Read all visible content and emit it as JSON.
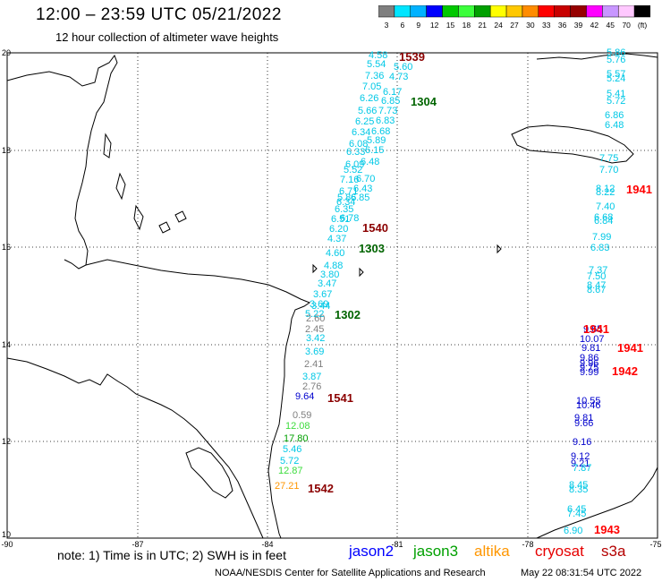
{
  "header": {
    "title": "12:00 – 23:59 UTC 05/21/2022",
    "subtitle": "12 hour collection of altimeter wave heights"
  },
  "scale": {
    "colors": [
      "#7f7f7f",
      "#00e5ff",
      "#00b2ff",
      "#0000ff",
      "#00c800",
      "#3cff3c",
      "#00a000",
      "#ffff00",
      "#ffc800",
      "#ff8c00",
      "#ff0000",
      "#c80000",
      "#960000",
      "#ff00ff",
      "#c896ff",
      "#ffc8ff",
      "#000000"
    ],
    "labels": [
      "3",
      "6",
      "9",
      "12",
      "15",
      "18",
      "21",
      "24",
      "27",
      "30",
      "33",
      "36",
      "39",
      "42",
      "45",
      "70",
      "(ft)"
    ]
  },
  "axes": {
    "x_ticks": [
      "-90",
      "-87",
      "-84",
      "-81",
      "-78",
      "-75"
    ],
    "y_ticks": [
      "20",
      "18",
      "16",
      "14",
      "12",
      "10"
    ]
  },
  "track_times": [
    {
      "text": "1539",
      "color": "#8b0000"
    },
    {
      "text": "1304",
      "color": "#006400"
    },
    {
      "text": "1540",
      "color": "#8b0000"
    },
    {
      "text": "1303",
      "color": "#006400"
    },
    {
      "text": "1302",
      "color": "#006400"
    },
    {
      "text": "1541",
      "color": "#8b0000"
    },
    {
      "text": "1542",
      "color": "#8b0000"
    },
    {
      "text": "1941",
      "color": "#ff0000"
    },
    {
      "text": "1941",
      "color": "#ff0000"
    },
    {
      "text": "1941",
      "color": "#ff0000"
    },
    {
      "text": "1942",
      "color": "#ff0000"
    },
    {
      "text": "1943",
      "color": "#ff0000"
    }
  ],
  "wave_heights": [
    {
      "text": "4.58",
      "color": "#00c8e6"
    },
    {
      "text": "5.54",
      "color": "#00c8e6"
    },
    {
      "text": "5.60",
      "color": "#00c8e6"
    },
    {
      "text": "7.36",
      "color": "#00c8e6"
    },
    {
      "text": "4.73",
      "color": "#00c8e6"
    },
    {
      "text": "7.05",
      "color": "#00c8e6"
    },
    {
      "text": "6.17",
      "color": "#00c8e6"
    },
    {
      "text": "6.26",
      "color": "#00c8e6"
    },
    {
      "text": "6.85",
      "color": "#00c8e6"
    },
    {
      "text": "5.66",
      "color": "#00c8e6"
    },
    {
      "text": "7.73",
      "color": "#00c8e6"
    },
    {
      "text": "6.25",
      "color": "#00c8e6"
    },
    {
      "text": "6.83",
      "color": "#00c8e6"
    },
    {
      "text": "6.34",
      "color": "#00c8e6"
    },
    {
      "text": "6.68",
      "color": "#00c8e6"
    },
    {
      "text": "6.08",
      "color": "#00c8e6"
    },
    {
      "text": "5.89",
      "color": "#00c8e6"
    },
    {
      "text": "6.33",
      "color": "#00c8e6"
    },
    {
      "text": "6.15",
      "color": "#00c8e6"
    },
    {
      "text": "6.09",
      "color": "#00c8e6"
    },
    {
      "text": "6.48",
      "color": "#00c8e6"
    },
    {
      "text": "5.52",
      "color": "#00c8e6"
    },
    {
      "text": "7.16",
      "color": "#00c8e6"
    },
    {
      "text": "6.70",
      "color": "#00c8e6"
    },
    {
      "text": "6.71",
      "color": "#00c8e6"
    },
    {
      "text": "6.43",
      "color": "#00c8e6"
    },
    {
      "text": "6.34",
      "color": "#00c8e6"
    },
    {
      "text": "5.86",
      "color": "#00c8e6"
    },
    {
      "text": "6.85",
      "color": "#00c8e6"
    },
    {
      "text": "6.35",
      "color": "#00c8e6"
    },
    {
      "text": "6.78",
      "color": "#00c8e6"
    },
    {
      "text": "6.51",
      "color": "#00c8e6"
    },
    {
      "text": "6.20",
      "color": "#00c8e6"
    },
    {
      "text": "4.37",
      "color": "#00c8e6"
    },
    {
      "text": "4.60",
      "color": "#00c8e6"
    },
    {
      "text": "4.88",
      "color": "#00c8e6"
    },
    {
      "text": "3.80",
      "color": "#00c8e6"
    },
    {
      "text": "3.47",
      "color": "#00c8e6"
    },
    {
      "text": "3.67",
      "color": "#00c8e6"
    },
    {
      "text": "3.44",
      "color": "#00c8e6"
    },
    {
      "text": "3.69",
      "color": "#00c8e6"
    },
    {
      "text": "5.22",
      "color": "#00c8e6"
    },
    {
      "text": "2.60",
      "color": "#7f7f7f"
    },
    {
      "text": "2.45",
      "color": "#7f7f7f"
    },
    {
      "text": "3.42",
      "color": "#00c8e6"
    },
    {
      "text": "3.69",
      "color": "#00c8e6"
    },
    {
      "text": "2.41",
      "color": "#7f7f7f"
    },
    {
      "text": "3.87",
      "color": "#00c8e6"
    },
    {
      "text": "2.76",
      "color": "#7f7f7f"
    },
    {
      "text": "9.64",
      "color": "#0000cd"
    },
    {
      "text": "0.59",
      "color": "#7f7f7f"
    },
    {
      "text": "12.08",
      "color": "#3cdc3c"
    },
    {
      "text": "17.80",
      "color": "#00a000"
    },
    {
      "text": "5.46",
      "color": "#00c8e6"
    },
    {
      "text": "5.72",
      "color": "#00c8e6"
    },
    {
      "text": "12.87",
      "color": "#3cdc3c"
    },
    {
      "text": "27.21",
      "color": "#ff9600"
    },
    {
      "text": "5.86",
      "color": "#00c8e6"
    },
    {
      "text": "5.76",
      "color": "#00c8e6"
    },
    {
      "text": "5.57",
      "color": "#00c8e6"
    },
    {
      "text": "5.24",
      "color": "#00c8e6"
    },
    {
      "text": "5.41",
      "color": "#00c8e6"
    },
    {
      "text": "5.72",
      "color": "#00c8e6"
    },
    {
      "text": "6.86",
      "color": "#00c8e6"
    },
    {
      "text": "6.48",
      "color": "#00c8e6"
    },
    {
      "text": "7.75",
      "color": "#00c8e6"
    },
    {
      "text": "7.70",
      "color": "#00c8e6"
    },
    {
      "text": "8.12",
      "color": "#00c8e6"
    },
    {
      "text": "8.22",
      "color": "#00c8e6"
    },
    {
      "text": "7.40",
      "color": "#00c8e6"
    },
    {
      "text": "6.68",
      "color": "#00c8e6"
    },
    {
      "text": "6.84",
      "color": "#00c8e6"
    },
    {
      "text": "7.99",
      "color": "#00c8e6"
    },
    {
      "text": "6.83",
      "color": "#00c8e6"
    },
    {
      "text": "7.37",
      "color": "#00c8e6"
    },
    {
      "text": "7.50",
      "color": "#00c8e6"
    },
    {
      "text": "8.47",
      "color": "#00c8e6"
    },
    {
      "text": "8.67",
      "color": "#00c8e6"
    },
    {
      "text": "9.65",
      "color": "#0000cd"
    },
    {
      "text": "10.07",
      "color": "#0000cd"
    },
    {
      "text": "9.81",
      "color": "#0000cd"
    },
    {
      "text": "9.86",
      "color": "#0000cd"
    },
    {
      "text": "9.96",
      "color": "#0000cd"
    },
    {
      "text": "9.75",
      "color": "#0000cd"
    },
    {
      "text": "9.99",
      "color": "#0000cd"
    },
    {
      "text": "10.55",
      "color": "#0000cd"
    },
    {
      "text": "10.46",
      "color": "#0000cd"
    },
    {
      "text": "9.81",
      "color": "#0000cd"
    },
    {
      "text": "9.66",
      "color": "#0000cd"
    },
    {
      "text": "9.16",
      "color": "#0000cd"
    },
    {
      "text": "9.12",
      "color": "#0000cd"
    },
    {
      "text": "9.21",
      "color": "#0000cd"
    },
    {
      "text": "7.87",
      "color": "#00c8e6"
    },
    {
      "text": "8.45",
      "color": "#00c8e6"
    },
    {
      "text": "8.35",
      "color": "#00c8e6"
    },
    {
      "text": "6.45",
      "color": "#00c8e6"
    },
    {
      "text": "7.45",
      "color": "#00c8e6"
    },
    {
      "text": "6.90",
      "color": "#00c8e6"
    }
  ],
  "footer": {
    "note": "note:  1) Time is in UTC;  2) SWH is in feet",
    "satellites": [
      {
        "name": "jason2",
        "color": "#0000ff"
      },
      {
        "name": "jason3",
        "color": "#00a000"
      },
      {
        "name": "altika",
        "color": "#ff9600"
      },
      {
        "name": "cryosat",
        "color": "#e60000"
      },
      {
        "name": "s3a",
        "color": "#b40000"
      }
    ],
    "credit": "NOAA/NESDIS Center for Satellite Applications and Research",
    "timestamp": "May 22 08:31:54 UTC 2022"
  }
}
